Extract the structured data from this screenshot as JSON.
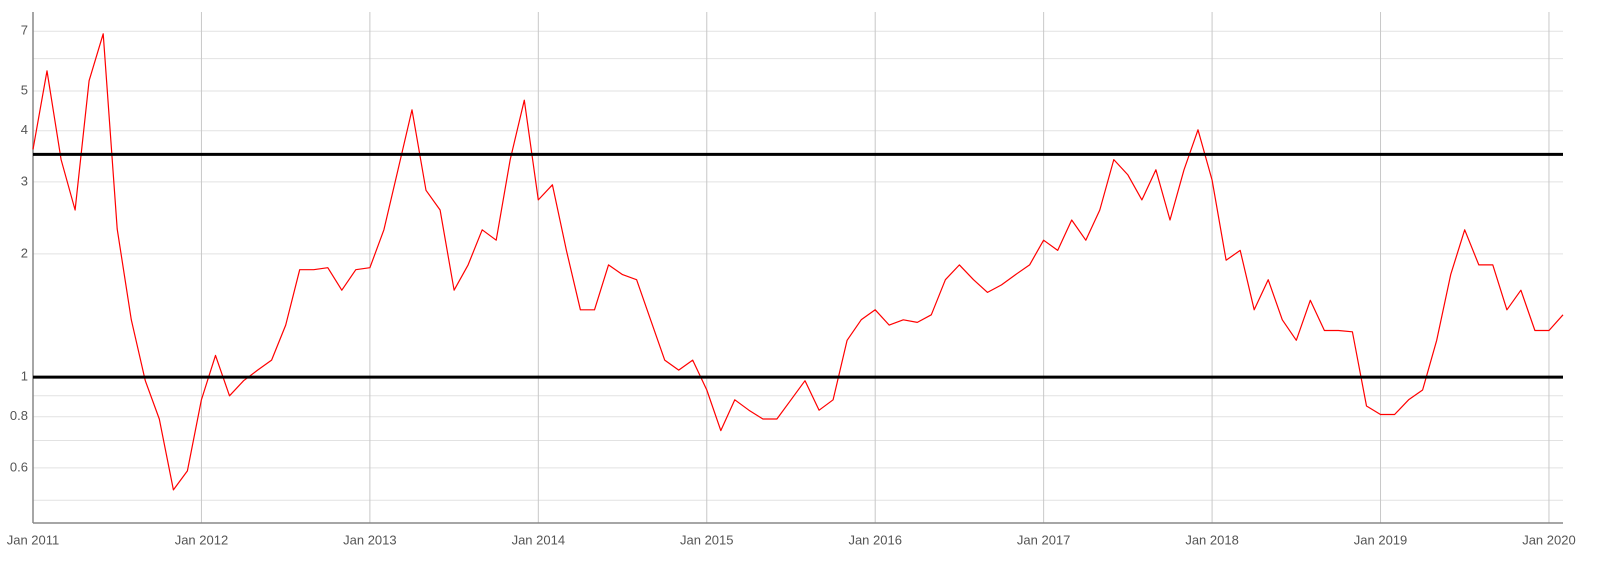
{
  "chart_data": {
    "type": "line",
    "log_y": true,
    "grid": true,
    "xlim": [
      "2011-01",
      "2020-02"
    ],
    "ylim": [
      0.44,
      7.8
    ],
    "yticks": [
      0.6,
      0.8,
      1,
      2,
      3,
      4,
      5,
      7
    ],
    "minor_grid": [
      0.5,
      0.7,
      0.9,
      6
    ],
    "xticks": [
      {
        "value": "2011-01",
        "label": "Jan 2011"
      },
      {
        "value": "2012-01",
        "label": "Jan 2012"
      },
      {
        "value": "2013-01",
        "label": "Jan 2013"
      },
      {
        "value": "2014-01",
        "label": "Jan 2014"
      },
      {
        "value": "2015-01",
        "label": "Jan 2015"
      },
      {
        "value": "2016-01",
        "label": "Jan 2016"
      },
      {
        "value": "2017-01",
        "label": "Jan 2017"
      },
      {
        "value": "2018-01",
        "label": "Jan 2018"
      },
      {
        "value": "2019-01",
        "label": "Jan 2019"
      },
      {
        "value": "2020-01",
        "label": "Jan 2020"
      }
    ],
    "hlines": [
      1,
      3.5
    ],
    "hline_color": "#000000",
    "x": [
      "2011-01",
      "2011-02",
      "2011-03",
      "2011-04",
      "2011-05",
      "2011-06",
      "2011-07",
      "2011-08",
      "2011-09",
      "2011-10",
      "2011-11",
      "2011-12",
      "2012-01",
      "2012-02",
      "2012-03",
      "2012-04",
      "2012-05",
      "2012-06",
      "2012-07",
      "2012-08",
      "2012-09",
      "2012-10",
      "2012-11",
      "2012-12",
      "2013-01",
      "2013-02",
      "2013-03",
      "2013-04",
      "2013-05",
      "2013-06",
      "2013-07",
      "2013-08",
      "2013-09",
      "2013-10",
      "2013-11",
      "2013-12",
      "2014-01",
      "2014-02",
      "2014-03",
      "2014-04",
      "2014-05",
      "2014-06",
      "2014-07",
      "2014-08",
      "2014-09",
      "2014-10",
      "2014-11",
      "2014-12",
      "2015-01",
      "2015-02",
      "2015-03",
      "2015-04",
      "2015-05",
      "2015-06",
      "2015-07",
      "2015-08",
      "2015-09",
      "2015-10",
      "2015-11",
      "2015-12",
      "2016-01",
      "2016-02",
      "2016-03",
      "2016-04",
      "2016-05",
      "2016-06",
      "2016-07",
      "2016-08",
      "2016-09",
      "2016-10",
      "2016-11",
      "2016-12",
      "2017-01",
      "2017-02",
      "2017-03",
      "2017-04",
      "2017-05",
      "2017-06",
      "2017-07",
      "2017-08",
      "2017-09",
      "2017-10",
      "2017-11",
      "2017-12",
      "2018-01",
      "2018-02",
      "2018-03",
      "2018-04",
      "2018-05",
      "2018-06",
      "2018-07",
      "2018-08",
      "2018-09",
      "2018-10",
      "2018-11",
      "2018-12",
      "2019-01",
      "2019-02",
      "2019-03",
      "2019-04",
      "2019-05",
      "2019-06",
      "2019-07",
      "2019-08",
      "2019-09",
      "2019-10",
      "2019-11",
      "2019-12",
      "2020-01",
      "2020-02"
    ],
    "series": [
      {
        "color": "#ff0000",
        "values": [
          3.6,
          5.6,
          3.4,
          2.56,
          5.3,
          6.9,
          2.3,
          1.38,
          0.98,
          0.79,
          0.53,
          0.59,
          0.88,
          1.13,
          0.9,
          0.98,
          1.04,
          1.1,
          1.34,
          1.83,
          1.83,
          1.85,
          1.63,
          1.83,
          1.85,
          2.29,
          3.21,
          4.5,
          2.86,
          2.56,
          1.63,
          1.88,
          2.29,
          2.16,
          3.4,
          4.75,
          2.71,
          2.95,
          2.04,
          1.46,
          1.46,
          1.88,
          1.78,
          1.73,
          1.38,
          1.1,
          1.04,
          1.1,
          0.93,
          0.74,
          0.88,
          0.83,
          0.79,
          0.79,
          0.88,
          0.98,
          0.83,
          0.88,
          1.23,
          1.38,
          1.46,
          1.34,
          1.38,
          1.36,
          1.42,
          1.73,
          1.88,
          1.73,
          1.61,
          1.68,
          1.78,
          1.88,
          2.16,
          2.04,
          2.42,
          2.16,
          2.56,
          3.4,
          3.12,
          2.71,
          3.21,
          2.42,
          3.21,
          4.02,
          3.03,
          1.93,
          2.04,
          1.46,
          1.73,
          1.38,
          1.23,
          1.54,
          1.3,
          1.3,
          1.29,
          0.85,
          0.81,
          0.81,
          0.88,
          0.93,
          1.23,
          1.78,
          2.29,
          1.88,
          1.88,
          1.46,
          1.63,
          1.3,
          1.3,
          1.42
        ]
      }
    ]
  }
}
